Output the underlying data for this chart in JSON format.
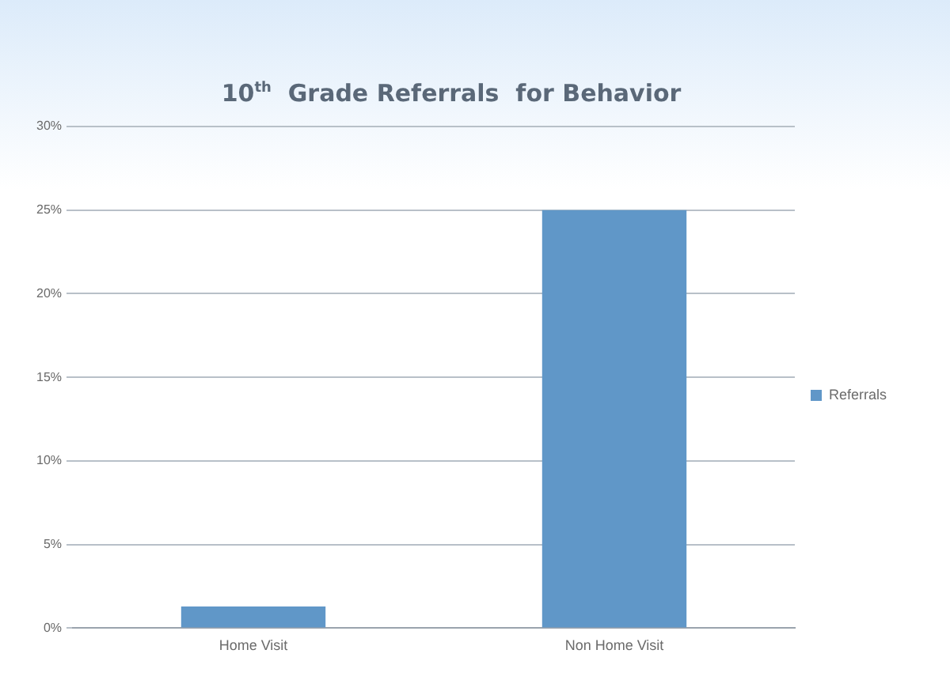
{
  "chart_data": {
    "type": "bar",
    "title": "10$^{th}$  Grade Referrals  for Behavior",
    "categories": [
      "Home Visit",
      "Non Home Visit"
    ],
    "series": [
      {
        "name": "Referrals",
        "color": "#6097c8",
        "values": [
          1.3,
          25
        ]
      }
    ],
    "ylim": [
      0,
      30
    ],
    "yticks": [
      {
        "value": 0,
        "label": "0%"
      },
      {
        "value": 5,
        "label": "5%"
      },
      {
        "value": 10,
        "label": "10%"
      },
      {
        "value": 15,
        "label": "15%"
      },
      {
        "value": 20,
        "label": "20%"
      },
      {
        "value": 25,
        "label": "25%"
      },
      {
        "value": 30,
        "label": "30%"
      }
    ],
    "grid": "y",
    "legend": "right"
  }
}
